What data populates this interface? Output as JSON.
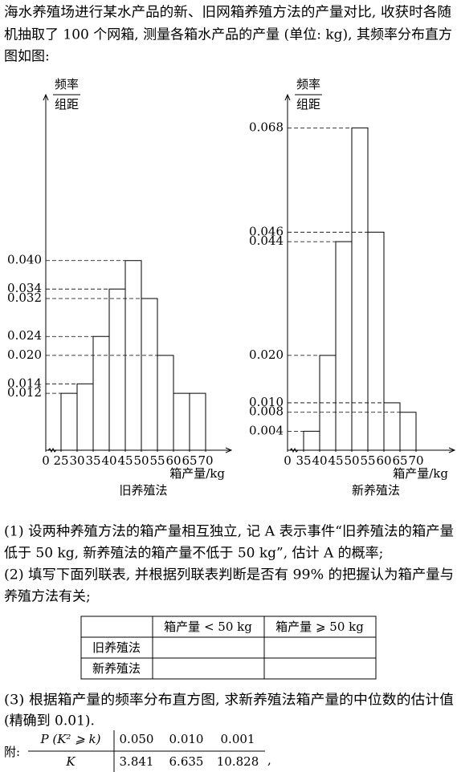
{
  "intro": [
    "海水养殖场进行某水产品的新、旧网箱养殖方法的产量对比, 收获时各随",
    "机抽取了 100 个网箱, 测量各箱水产品的产量 (单位: kg), 其频率分布直方",
    "图如图:"
  ],
  "chart_data": [
    {
      "type": "histogram",
      "ylabel_top": "频率",
      "ylabel_bottom": "组距",
      "xlabel": "箱产量/kg",
      "caption": "旧养殖法",
      "bins": [
        25,
        30,
        35,
        40,
        45,
        50,
        55,
        60,
        65,
        70
      ],
      "values": [
        0.012,
        0.014,
        0.024,
        0.034,
        0.04,
        0.032,
        0.02,
        0.012,
        0.012
      ],
      "xlim": [
        0,
        78
      ],
      "xticks": [
        0,
        25,
        30,
        35,
        40,
        45,
        50,
        55,
        60,
        65,
        70
      ],
      "axis_break": true,
      "ylim": [
        0,
        0.075
      ],
      "yticks": [
        {
          "value": 0.04,
          "label": "0.040"
        },
        0.034,
        0.032,
        0.024,
        {
          "value": 0.02,
          "label": "0.020"
        },
        0.014,
        0.012
      ]
    },
    {
      "type": "histogram",
      "ylabel_top": "频率",
      "ylabel_bottom": "组距",
      "xlabel": "箱产量/kg",
      "caption": "新养殖法",
      "bins": [
        35,
        40,
        45,
        50,
        55,
        60,
        65,
        70
      ],
      "values": [
        0.004,
        0.02,
        0.044,
        0.068,
        0.046,
        0.01,
        0.008
      ],
      "xlim": [
        0,
        82
      ],
      "xticks": [
        0,
        35,
        40,
        45,
        50,
        55,
        60,
        65,
        70
      ],
      "axis_break": true,
      "ylim": [
        0,
        0.075
      ],
      "yticks": [
        0.068,
        0.046,
        0.044,
        {
          "value": 0.02,
          "label": "0.020"
        },
        {
          "value": 0.01,
          "label": "0.010"
        },
        0.008,
        0.004
      ]
    }
  ],
  "questions": [
    [
      "(1) 设两种养殖方法的箱产量相互独立, 记 A 表示事件“旧养殖法的箱产量",
      "低于 50 kg, 新养殖法的箱产量不低于 50 kg”, 估计 A 的概率;"
    ],
    [
      "(2) 填写下面列联表, 并根据列联表判断是否有 99% 的把握认为箱产量与",
      "养殖方法有关;"
    ],
    [
      "(3) 根据箱产量的频率分布直方图, 求新养殖法箱产量的中位数的估计值",
      "(精确到 0.01)."
    ]
  ],
  "table": {
    "header": [
      "箱产量 < 50 kg",
      "箱产量 ⩾ 50 kg"
    ],
    "row_labels": [
      "旧养殖法",
      "新养殖法"
    ]
  },
  "appendix": {
    "label": "附:",
    "rows": [
      {
        "name": "P (K² ⩾ k)",
        "cells": [
          "0.050",
          "0.010",
          "0.001"
        ]
      },
      {
        "name": "K",
        "cells": [
          "3.841",
          "6.635",
          "10.828"
        ]
      }
    ],
    "tail": ","
  }
}
